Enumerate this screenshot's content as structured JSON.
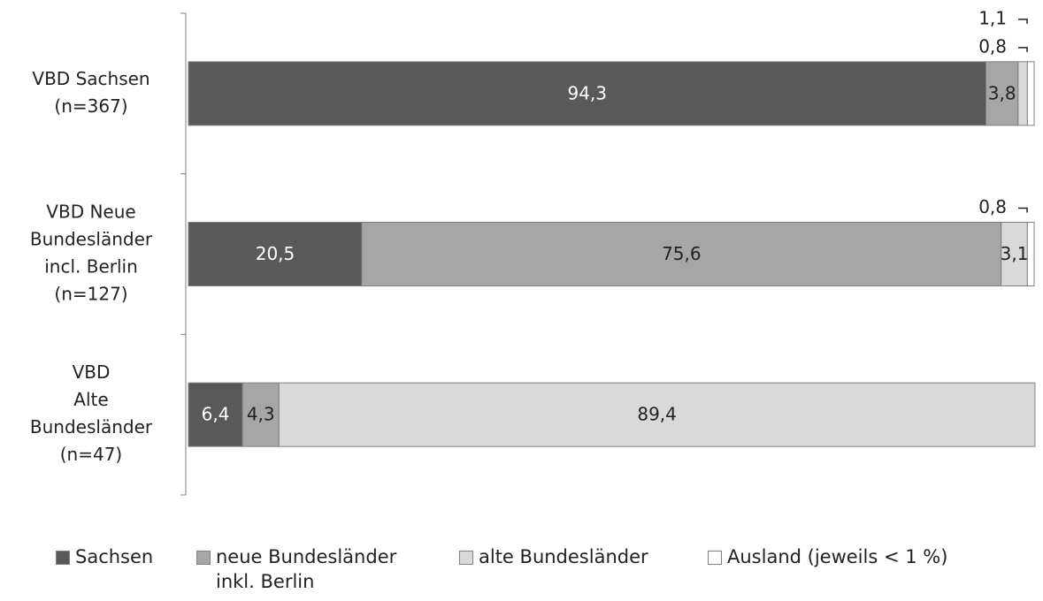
{
  "chart_data": {
    "type": "stacked-barh",
    "categories": [
      [
        "VBD Sachsen",
        "(n=367)"
      ],
      [
        "VBD Neue",
        "Bundesländer",
        "incl. Berlin",
        "(n=127)"
      ],
      [
        "VBD",
        "Alte",
        "Bundesländer",
        "(n=47)"
      ]
    ],
    "series": [
      {
        "name": "Sachsen",
        "color": "#595959",
        "values": [
          94.3,
          20.5,
          6.4
        ],
        "value_labels": [
          "94,3",
          "20,5",
          "6,4"
        ]
      },
      {
        "name": "neue Bundesländer inkl. Berlin",
        "color": "#a6a6a6",
        "values": [
          3.8,
          75.6,
          4.3
        ],
        "value_labels": [
          "3,8",
          "75,6",
          "4,3"
        ]
      },
      {
        "name": "alte Bundesländer",
        "color": "#d9d9d9",
        "values": [
          1.1,
          3.1,
          89.4
        ],
        "value_labels": [
          "1,1",
          "3,1",
          "89,4"
        ]
      },
      {
        "name": "Ausland (jeweils < 1 %)",
        "color": "#ffffff",
        "values": [
          0.8,
          0.8,
          null
        ],
        "value_labels": [
          "0,8",
          "0,8",
          null
        ]
      }
    ],
    "xlim": [
      0,
      100
    ]
  }
}
